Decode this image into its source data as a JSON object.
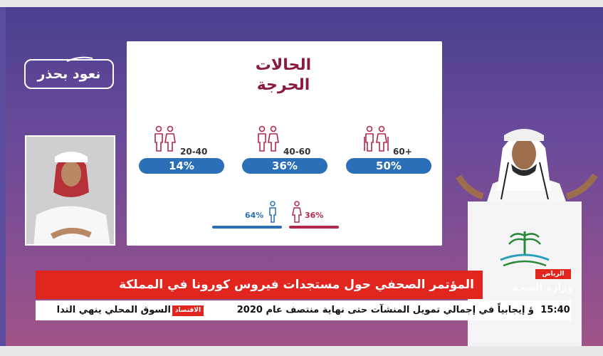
{
  "logo": {
    "text": "نعود بحذر"
  },
  "slide": {
    "title_line1": "الحالات",
    "title_line2": "الحرجة",
    "groups": [
      {
        "age": "60+",
        "percent": "50%"
      },
      {
        "age": "40-60",
        "percent": "36%"
      },
      {
        "age": "20-40",
        "percent": "14%"
      }
    ],
    "gender": {
      "male": {
        "percent": "64%",
        "color": "#2a6fb7"
      },
      "female": {
        "percent": "36%",
        "color": "#b2284a"
      }
    }
  },
  "lower_third": {
    "location": "الرياض",
    "headline": "المؤتمر الصحفي حول مستجدات فيروس كورونا في المملكة",
    "channel_overlay": "وزارة الصحة",
    "ticker": {
      "time": "15:40",
      "item1": "ؤ إيجابياً في إجمالي تمويل المنشآت حتى نهاية منتصف عام 2020",
      "category": "الاقتصاد",
      "item2": "السوق المحلي ينهي التدا"
    }
  },
  "colors": {
    "accent_red": "#e0261e",
    "pill_blue": "#2a6fb7",
    "title_maroon": "#8c1a3f"
  }
}
